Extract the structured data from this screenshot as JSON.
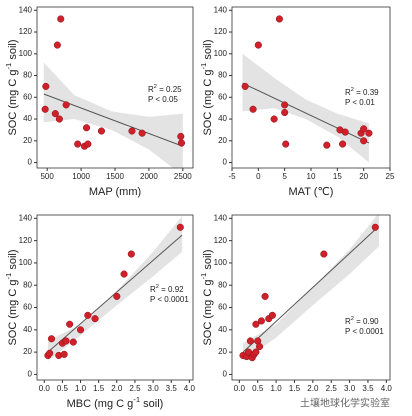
{
  "chart_data": [
    {
      "type": "scatter",
      "xlabel": "MAP (mm)",
      "ylabel": [
        "SOC (mg C g",
        "-1",
        " soil)"
      ],
      "annotation": [
        [
          "R",
          "2",
          " = 0.25"
        ],
        "P < 0.05"
      ],
      "color": "#d0202a",
      "x": [
        480,
        470,
        620,
        650,
        700,
        680,
        780,
        950,
        1050,
        1100,
        1080,
        1300,
        1750,
        1900,
        2470,
        2480
      ],
      "values": [
        70,
        49,
        45,
        108,
        132,
        40,
        53,
        17,
        15,
        17,
        32,
        29,
        29,
        27,
        24,
        18
      ],
      "fit": {
        "x": [
          450,
          2500
        ],
        "values": [
          63,
          15
        ]
      },
      "band": {
        "x": [
          450,
          900,
          1450,
          2000,
          2500
        ],
        "upper": [
          92,
          62,
          47,
          42,
          45
        ],
        "lower": [
          37,
          40,
          30,
          12,
          -12
        ]
      },
      "xlim": [
        350,
        2650
      ],
      "xticks": [
        500,
        1000,
        1500,
        2000,
        2500
      ],
      "ylim": [
        -5,
        143
      ],
      "yticks": [
        0,
        20,
        40,
        60,
        80,
        100,
        120,
        140
      ]
    },
    {
      "type": "scatter",
      "xlabel": "MAT (℃)",
      "ylabel": [
        "SOC (mg C g",
        "-1",
        " soil)"
      ],
      "annotation": [
        [
          "R",
          "2",
          " = 0.39"
        ],
        "P < 0.01"
      ],
      "color": "#d0202a",
      "x": [
        -2.5,
        -1,
        0,
        3,
        4,
        5,
        5,
        5.2,
        13,
        15.5,
        16,
        16.5,
        19.5,
        20,
        20,
        21
      ],
      "values": [
        70,
        49,
        108,
        40,
        132,
        53,
        46,
        17,
        16,
        30,
        17,
        28,
        27,
        31,
        20,
        27
      ],
      "fit": {
        "x": [
          -3,
          21
        ],
        "values": [
          73,
          18
        ]
      },
      "band": {
        "x": [
          -3,
          3,
          9,
          15,
          21
        ],
        "upper": [
          100,
          78,
          58,
          45,
          36
        ],
        "lower": [
          47,
          50,
          40,
          24,
          0
        ]
      },
      "xlim": [
        -5,
        25
      ],
      "xticks": [
        -5,
        0,
        5,
        10,
        15,
        20,
        25
      ],
      "ylim": [
        -5,
        143
      ],
      "yticks": [
        0,
        20,
        40,
        60,
        80,
        100,
        120,
        140
      ]
    },
    {
      "type": "scatter",
      "xlabel": [
        "MBC (mg C g",
        "-1",
        " soil)"
      ],
      "ylabel": [
        "SOC (mg C g",
        "-1",
        " soil)"
      ],
      "annotation": [
        [
          "R",
          "2",
          " = 0.92"
        ],
        "P < 0.0001"
      ],
      "color": "#d0202a",
      "x": [
        0.1,
        0.2,
        0.15,
        0.4,
        0.5,
        0.55,
        0.6,
        0.7,
        0.8,
        1.0,
        1.2,
        1.4,
        2.0,
        2.2,
        2.4,
        3.75
      ],
      "values": [
        17,
        32,
        19,
        17,
        28,
        18,
        30,
        45,
        29,
        40,
        53,
        50,
        70,
        90,
        108,
        132
      ],
      "fit": {
        "x": [
          0.1,
          3.8
        ],
        "values": [
          20,
          125
        ]
      },
      "band": {
        "x": [
          0.1,
          1,
          2,
          3,
          3.8
        ],
        "upper": [
          30,
          45,
          75,
          110,
          142
        ],
        "lower": [
          12,
          35,
          62,
          88,
          110
        ]
      },
      "xlim": [
        -0.2,
        4.1
      ],
      "xticks": [
        {
          "value": 0,
          "label": "0.0"
        },
        0.5,
        {
          "value": 1,
          "label": "1.0"
        },
        1.5,
        {
          "value": 2,
          "label": "2.0"
        },
        2.5,
        {
          "value": 3,
          "label": "3.0"
        },
        3.5,
        {
          "value": 4,
          "label": "4.0"
        }
      ],
      "ylim": [
        -5,
        143
      ],
      "yticks": [
        0,
        20,
        40,
        60,
        80,
        100,
        120,
        140
      ]
    },
    {
      "type": "scatter",
      "ylabel": [
        "SOC (mg C g",
        "-1",
        " soil)"
      ],
      "annotation": [
        [
          "R",
          "2",
          " = 0.90"
        ],
        "P < 0.0001"
      ],
      "color": "#d0202a",
      "x": [
        0.1,
        0.2,
        0.25,
        0.3,
        0.35,
        0.4,
        0.45,
        0.5,
        0.55,
        0.6,
        0.7,
        0.8,
        0.9,
        2.3,
        3.7,
        0.45
      ],
      "values": [
        17,
        16,
        20,
        30,
        15,
        18,
        45,
        30,
        25,
        48,
        70,
        50,
        53,
        108,
        132,
        20
      ],
      "fit": {
        "x": [
          0.1,
          3.7
        ],
        "values": [
          20,
          130
        ]
      },
      "band": {
        "x": [
          0.1,
          1,
          2,
          3,
          3.8
        ],
        "upper": [
          28,
          45,
          78,
          112,
          145
        ],
        "lower": [
          12,
          33,
          62,
          90,
          115
        ]
      },
      "xlim": [
        -0.2,
        4.1
      ],
      "xticks": [
        {
          "value": 0,
          "label": "0.0"
        },
        0.5,
        {
          "value": 1,
          "label": "1.0"
        },
        1.5,
        {
          "value": 2,
          "label": "2.0"
        },
        2.5,
        {
          "value": 3,
          "label": "3.0"
        },
        3.5,
        {
          "value": 4,
          "label": "4.0"
        }
      ],
      "ylim": [
        -5,
        143
      ],
      "yticks": [
        0,
        20,
        40,
        60,
        80,
        100,
        120,
        140
      ]
    }
  ],
  "watermark": "土壤地球化学实验室"
}
